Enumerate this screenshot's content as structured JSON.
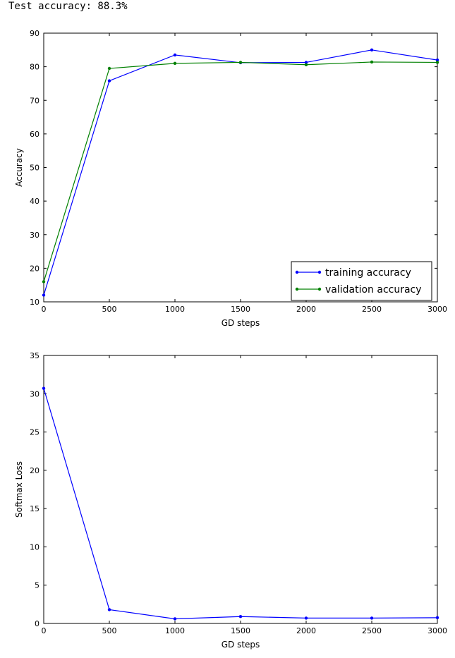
{
  "output": {
    "test_accuracy_text": "Test accuracy: 88.3%"
  },
  "chart_data": [
    {
      "type": "line",
      "xlabel": "GD steps",
      "ylabel": "Accuracy",
      "xlim": [
        0,
        3000
      ],
      "ylim": [
        10,
        90
      ],
      "xticks": [
        0,
        500,
        1000,
        1500,
        2000,
        2500,
        3000
      ],
      "yticks": [
        10,
        20,
        30,
        40,
        50,
        60,
        70,
        80,
        90
      ],
      "grid": false,
      "legend_position": "lower-right",
      "x": [
        0,
        500,
        1000,
        1500,
        2000,
        2500,
        3000
      ],
      "series": [
        {
          "name": "training accuracy",
          "color": "#0000ff",
          "values": [
            12,
            75.8,
            83.5,
            81.2,
            81.3,
            85,
            82
          ]
        },
        {
          "name": "validation accuracy",
          "color": "#008000",
          "values": [
            16,
            79.5,
            81,
            81.3,
            80.6,
            81.4,
            81.3
          ]
        }
      ]
    },
    {
      "type": "line",
      "xlabel": "GD steps",
      "ylabel": "Softmax Loss",
      "xlim": [
        0,
        3000
      ],
      "ylim": [
        0,
        35
      ],
      "xticks": [
        0,
        500,
        1000,
        1500,
        2000,
        2500,
        3000
      ],
      "yticks": [
        0,
        5,
        10,
        15,
        20,
        25,
        30,
        35
      ],
      "grid": false,
      "x": [
        0,
        500,
        1000,
        1500,
        2000,
        2500,
        3000
      ],
      "series": [
        {
          "color": "#0000ff",
          "values": [
            30.7,
            1.8,
            0.6,
            0.9,
            0.7,
            0.7,
            0.75
          ]
        }
      ]
    }
  ]
}
